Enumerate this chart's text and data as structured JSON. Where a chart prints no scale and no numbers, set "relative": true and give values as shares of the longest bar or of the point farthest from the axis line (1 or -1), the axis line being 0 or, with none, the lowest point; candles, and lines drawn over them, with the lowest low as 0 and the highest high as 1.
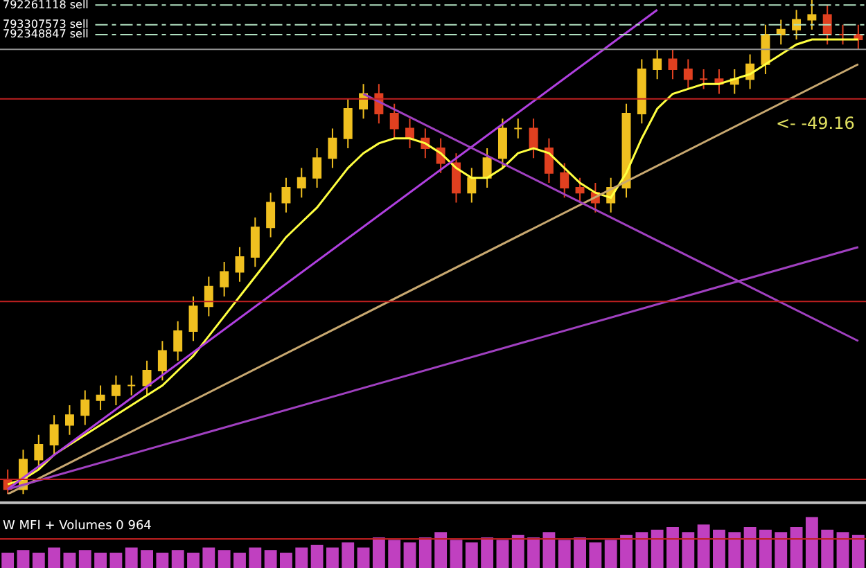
{
  "chart_data": [
    {
      "type": "candlestick",
      "relative": true,
      "grid": false,
      "tick_labels": false,
      "categories": [
        null,
        null,
        null,
        null,
        null,
        null,
        null,
        null,
        null,
        null,
        null,
        null,
        null,
        null,
        null,
        null,
        null,
        null,
        null,
        null,
        null,
        null,
        null,
        null,
        null,
        null,
        null,
        null,
        null,
        null,
        null,
        null,
        null,
        null,
        null,
        null,
        null,
        null,
        null,
        null,
        null,
        null,
        null,
        null,
        null,
        null,
        null,
        null,
        null,
        null,
        null,
        null,
        null,
        null,
        null,
        null
      ],
      "series": [
        {
          "type": "candlestick",
          "colors": [
            "#e04020",
            "#f0c020",
            "#f0c020",
            "#f0c020",
            "#f0c020",
            "#f0c020",
            "#f0c020",
            "#f0c020",
            "#f0c020",
            "#f0c020",
            "#f0c020",
            "#f0c020",
            "#f0c020",
            "#f0c020",
            "#f0c020",
            "#f0c020",
            "#f0c020",
            "#f0c020",
            "#f0c020",
            "#f0c020",
            "#f0c020",
            "#f0c020",
            "#f0c020",
            "#f0c020",
            "#e04020",
            "#e04020",
            "#e04020",
            "#e04020",
            "#e04020",
            "#e04020",
            "#f0c020",
            "#f0c020",
            "#f0c020",
            "#f0c020",
            "#e04020",
            "#e04020",
            "#e04020",
            "#e04020",
            "#e04020",
            "#f0c020",
            "#f0c020",
            "#f0c020",
            "#f0c020",
            "#e04020",
            "#e04020",
            "#e04020",
            "#e04020",
            "#f0c020",
            "#f0c020",
            "#f0c020",
            "#f0c020",
            "#f0c020",
            "#f0c020",
            "#e04020",
            "#e04020",
            "#e04020"
          ],
          "ohlc": [
            [
              0.03,
              0.05,
              0,
              0.01
            ],
            [
              0.01,
              0.09,
              0,
              0.07
            ],
            [
              0.07,
              0.12,
              0.05,
              0.1
            ],
            [
              0.1,
              0.16,
              0.08,
              0.14
            ],
            [
              0.14,
              0.18,
              0.12,
              0.16
            ],
            [
              0.16,
              0.21,
              0.14,
              0.19
            ],
            [
              0.19,
              0.22,
              0.17,
              0.2
            ],
            [
              0.2,
              0.24,
              0.18,
              0.22
            ],
            [
              0.22,
              0.24,
              0.2,
              0.22
            ],
            [
              0.22,
              0.27,
              0.2,
              0.25
            ],
            [
              0.25,
              0.31,
              0.23,
              0.29
            ],
            [
              0.29,
              0.35,
              0.27,
              0.33
            ],
            [
              0.33,
              0.4,
              0.31,
              0.38
            ],
            [
              0.38,
              0.44,
              0.36,
              0.42
            ],
            [
              0.42,
              0.47,
              0.4,
              0.45
            ],
            [
              0.45,
              0.5,
              0.43,
              0.48
            ],
            [
              0.48,
              0.56,
              0.46,
              0.54
            ],
            [
              0.54,
              0.61,
              0.52,
              0.59
            ],
            [
              0.59,
              0.64,
              0.57,
              0.62
            ],
            [
              0.62,
              0.66,
              0.6,
              0.64
            ],
            [
              0.64,
              0.7,
              0.62,
              0.68
            ],
            [
              0.68,
              0.74,
              0.66,
              0.72
            ],
            [
              0.72,
              0.8,
              0.7,
              0.78
            ],
            [
              0.78,
              0.83,
              0.76,
              0.81
            ],
            [
              0.81,
              0.83,
              0.75,
              0.77
            ],
            [
              0.77,
              0.79,
              0.72,
              0.74
            ],
            [
              0.74,
              0.76,
              0.7,
              0.72
            ],
            [
              0.72,
              0.74,
              0.68,
              0.7
            ],
            [
              0.7,
              0.72,
              0.65,
              0.67
            ],
            [
              0.67,
              0.69,
              0.59,
              0.61
            ],
            [
              0.61,
              0.66,
              0.59,
              0.64
            ],
            [
              0.64,
              0.7,
              0.62,
              0.68
            ],
            [
              0.68,
              0.76,
              0.66,
              0.74
            ],
            [
              0.74,
              0.76,
              0.72,
              0.74
            ],
            [
              0.74,
              0.76,
              0.68,
              0.7
            ],
            [
              0.7,
              0.72,
              0.63,
              0.65
            ],
            [
              0.65,
              0.67,
              0.6,
              0.62
            ],
            [
              0.62,
              0.64,
              0.59,
              0.61
            ],
            [
              0.61,
              0.63,
              0.57,
              0.59
            ],
            [
              0.59,
              0.64,
              0.57,
              0.62
            ],
            [
              0.62,
              0.79,
              0.6,
              0.77
            ],
            [
              0.77,
              0.88,
              0.75,
              0.86
            ],
            [
              0.86,
              0.9,
              0.84,
              0.88
            ],
            [
              0.88,
              0.9,
              0.84,
              0.86
            ],
            [
              0.86,
              0.88,
              0.82,
              0.84
            ],
            [
              0.84,
              0.86,
              0.82,
              0.84
            ],
            [
              0.84,
              0.86,
              0.81,
              0.83
            ],
            [
              0.83,
              0.86,
              0.81,
              0.84
            ],
            [
              0.84,
              0.89,
              0.82,
              0.87
            ],
            [
              0.87,
              0.95,
              0.85,
              0.93
            ],
            [
              0.93,
              0.96,
              0.91,
              0.94
            ],
            [
              0.94,
              0.98,
              0.92,
              0.96
            ],
            [
              0.96,
              1.0,
              0.94,
              0.97
            ],
            [
              0.97,
              0.99,
              0.91,
              0.93
            ],
            [
              0.93,
              0.95,
              0.91,
              0.93
            ],
            [
              0.93,
              0.95,
              0.9,
              0.92
            ]
          ]
        },
        {
          "type": "line",
          "color": "#ffff40",
          "values": [
            0.02,
            0.03,
            0.05,
            0.08,
            0.1,
            0.12,
            0.14,
            0.16,
            0.18,
            0.2,
            0.22,
            0.25,
            0.28,
            0.32,
            0.36,
            0.4,
            0.44,
            0.48,
            0.52,
            0.55,
            0.58,
            0.62,
            0.66,
            0.69,
            0.71,
            0.72,
            0.72,
            0.71,
            0.69,
            0.66,
            0.64,
            0.64,
            0.66,
            0.69,
            0.7,
            0.69,
            0.66,
            0.63,
            0.61,
            0.6,
            0.65,
            0.72,
            0.78,
            0.81,
            0.82,
            0.83,
            0.83,
            0.84,
            0.85,
            0.87,
            0.89,
            0.91,
            0.92,
            0.92,
            0.92,
            0.92
          ]
        },
        {
          "type": "line",
          "color": "#b040e0",
          "values": [
            0.01,
            null,
            null,
            null,
            null,
            null,
            null,
            null,
            null,
            null,
            null,
            null,
            null,
            null,
            null,
            null,
            null,
            null,
            null,
            null,
            null,
            null,
            null,
            null,
            null,
            null,
            null,
            null,
            null,
            null,
            null,
            null,
            null,
            null,
            null,
            null,
            null,
            null,
            null,
            null,
            null,
            null,
            0.98,
            null,
            null,
            null,
            null,
            null,
            null,
            null,
            null,
            null,
            null,
            null,
            null,
            null
          ]
        },
        {
          "type": "line",
          "color": "#c8a870",
          "values": [
            0.0,
            null,
            null,
            null,
            null,
            null,
            null,
            null,
            null,
            null,
            null,
            null,
            null,
            null,
            null,
            null,
            null,
            null,
            null,
            null,
            null,
            null,
            null,
            null,
            null,
            null,
            null,
            null,
            null,
            null,
            null,
            null,
            null,
            null,
            null,
            null,
            null,
            null,
            null,
            null,
            null,
            null,
            null,
            null,
            null,
            null,
            null,
            null,
            null,
            null,
            null,
            null,
            null,
            null,
            null,
            0.87
          ]
        },
        {
          "type": "line",
          "color": "#a040c0",
          "values": [
            0.01,
            null,
            null,
            null,
            null,
            null,
            null,
            null,
            null,
            null,
            null,
            null,
            null,
            null,
            null,
            null,
            null,
            null,
            null,
            null,
            null,
            null,
            null,
            null,
            null,
            null,
            null,
            null,
            null,
            null,
            null,
            null,
            null,
            null,
            null,
            null,
            null,
            null,
            null,
            null,
            null,
            null,
            null,
            null,
            null,
            null,
            null,
            null,
            null,
            null,
            null,
            null,
            null,
            null,
            null,
            0.5
          ]
        },
        {
          "type": "line",
          "color": "#a040c0",
          "values": [
            null,
            null,
            null,
            null,
            null,
            null,
            null,
            null,
            null,
            null,
            null,
            null,
            null,
            null,
            null,
            null,
            null,
            null,
            null,
            null,
            null,
            null,
            null,
            0.81,
            null,
            null,
            null,
            null,
            null,
            null,
            null,
            null,
            null,
            null,
            null,
            null,
            null,
            null,
            null,
            null,
            null,
            null,
            null,
            null,
            null,
            null,
            null,
            null,
            null,
            null,
            null,
            null,
            null,
            null,
            null,
            0.31
          ]
        }
      ],
      "ref_lines": [
        {
          "axis": "y",
          "value": 0.99,
          "label": "792261118 sell",
          "color": "#b0e0c0",
          "line_style": "dashed"
        },
        {
          "axis": "y",
          "value": 0.95,
          "label": "793307573 sell",
          "color": "#b0e0c0",
          "line_style": "dashed"
        },
        {
          "axis": "y",
          "value": 0.93,
          "label": "792348847 sell",
          "color": "#b0e0c0",
          "line_style": "dashed"
        },
        {
          "axis": "y",
          "value": 0.9,
          "color": "#909090",
          "line_style": "solid"
        },
        {
          "axis": "y",
          "value": 0.8,
          "color": "#c02020",
          "line_style": "solid"
        },
        {
          "axis": "y",
          "value": 0.39,
          "color": "#c02020",
          "line_style": "solid"
        },
        {
          "axis": "y",
          "value": 0.03,
          "color": "#c02020",
          "line_style": "solid"
        }
      ],
      "annotations": [
        "<- -49.16"
      ]
    },
    {
      "type": "bar",
      "relative": true,
      "grid": false,
      "tick_labels": false,
      "title": "W MFI + Volumes 0 964",
      "categories": [
        null,
        null,
        null,
        null,
        null,
        null,
        null,
        null,
        null,
        null,
        null,
        null,
        null,
        null,
        null,
        null,
        null,
        null,
        null,
        null,
        null,
        null,
        null,
        null,
        null,
        null,
        null,
        null,
        null,
        null,
        null,
        null,
        null,
        null,
        null,
        null,
        null,
        null,
        null,
        null,
        null,
        null,
        null,
        null,
        null,
        null,
        null,
        null,
        null,
        null,
        null,
        null,
        null,
        null,
        null,
        null
      ],
      "series": [
        {
          "color": "#c040c0",
          "values": [
            0.3,
            0.35,
            0.3,
            0.4,
            0.3,
            0.35,
            0.3,
            0.3,
            0.4,
            0.35,
            0.3,
            0.35,
            0.3,
            0.4,
            0.35,
            0.3,
            0.4,
            0.35,
            0.3,
            0.4,
            0.45,
            0.4,
            0.5,
            0.4,
            0.6,
            0.55,
            0.5,
            0.6,
            0.7,
            0.55,
            0.5,
            0.6,
            0.55,
            0.65,
            0.6,
            0.7,
            0.55,
            0.6,
            0.5,
            0.55,
            0.65,
            0.7,
            0.75,
            0.8,
            0.7,
            0.85,
            0.75,
            0.7,
            0.8,
            0.75,
            0.7,
            0.8,
            1.0,
            0.75,
            0.7,
            0.65
          ]
        }
      ],
      "ref_lines": [
        {
          "axis": "y",
          "value": 0.57,
          "color": "#c02020",
          "line_style": "solid"
        }
      ]
    }
  ]
}
